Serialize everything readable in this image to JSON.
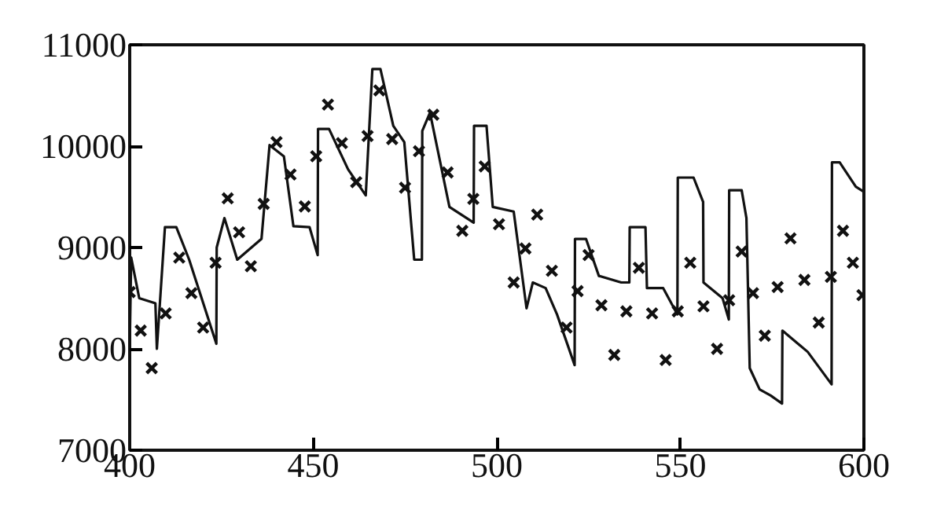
{
  "chart_data": {
    "type": "line",
    "xlim": [
      400,
      600
    ],
    "ylim": [
      7000,
      11000
    ],
    "xticks": [
      400,
      450,
      500,
      550,
      600
    ],
    "yticks": [
      7000,
      8000,
      9000,
      10000,
      11000
    ],
    "grid": false,
    "series": [
      {
        "color": "#111111",
        "marker": "none",
        "line_style": "solid",
        "x": [
          400,
          400.4,
          402.6,
          407,
          407.4,
          409.6,
          412.7,
          416.2,
          423.6,
          423.7,
          425.8,
          429.3,
          435.9,
          438.1,
          442,
          444.6,
          449,
          451.2,
          451.3,
          454.3,
          459.5,
          464.3,
          466.1,
          468.3,
          471.8,
          474.8,
          477.5,
          479.6,
          479.7,
          481.8,
          487.1,
          493.7,
          493.8,
          497.2,
          498.9,
          504.6,
          508.1,
          509.8,
          513.3,
          516.4,
          521.2,
          521.3,
          524.3,
          527.8,
          533.9,
          536.1,
          536.2,
          540.5,
          540.9,
          545.3,
          549.2,
          549.3,
          553.6,
          556.2,
          556.3,
          561.5,
          563.2,
          563.3,
          566.7,
          568,
          568.9,
          571.6,
          574.6,
          577.7,
          577.8,
          584.7,
          591.2,
          591.3,
          593.4,
          597.8,
          600
        ],
        "values": [
          8000,
          8900,
          8500,
          8450,
          8000,
          9200,
          9200,
          8880,
          8050,
          9000,
          9290,
          8880,
          9085,
          10010,
          9900,
          9210,
          9200,
          8925,
          10170,
          10170,
          9770,
          9515,
          10760,
          10760,
          10200,
          10040,
          8880,
          8880,
          10150,
          10330,
          9400,
          9245,
          10200,
          10200,
          9400,
          9355,
          8400,
          8655,
          8600,
          8340,
          7840,
          9085,
          9085,
          8720,
          8655,
          8655,
          9200,
          9200,
          8600,
          8600,
          8340,
          9690,
          9690,
          9450,
          8655,
          8500,
          8290,
          9565,
          9565,
          9290,
          7810,
          7600,
          7540,
          7460,
          8180,
          7970,
          7650,
          9840,
          9840,
          9600,
          9550
        ]
      },
      {
        "type": "scatter",
        "color": "#111111",
        "marker": "cross",
        "x": [
          400,
          403,
          406,
          409.8,
          413.5,
          416.8,
          420,
          423.4,
          426.7,
          429.8,
          433,
          436.5,
          440,
          443.8,
          447.7,
          450.8,
          454,
          457.8,
          461.7,
          464.8,
          468,
          471.5,
          475,
          478.8,
          482.7,
          486.6,
          490.6,
          493.6,
          496.7,
          500.6,
          504.6,
          507.8,
          511,
          515,
          519,
          522,
          525,
          528.5,
          532,
          535.3,
          538.7,
          542.3,
          546,
          549.3,
          552.7,
          556.3,
          560,
          563.3,
          566.7,
          569.8,
          573,
          576.5,
          580,
          583.8,
          587.7,
          591,
          594.3,
          597,
          599.6
        ],
        "values": [
          8560,
          8180,
          7810,
          8350,
          8900,
          8550,
          8210,
          8850,
          9485,
          9150,
          8815,
          9430,
          10040,
          9720,
          9405,
          9900,
          10410,
          10030,
          9645,
          10100,
          10550,
          10070,
          9590,
          9950,
          10310,
          9740,
          9165,
          9480,
          9800,
          9230,
          8655,
          8990,
          9325,
          8770,
          8210,
          8570,
          8925,
          8430,
          7940,
          8370,
          8800,
          8350,
          7890,
          8370,
          8850,
          8420,
          8000,
          8480,
          8960,
          8550,
          8130,
          8610,
          9090,
          8680,
          8260,
          8710,
          9165,
          8850,
          8530
        ]
      }
    ]
  }
}
